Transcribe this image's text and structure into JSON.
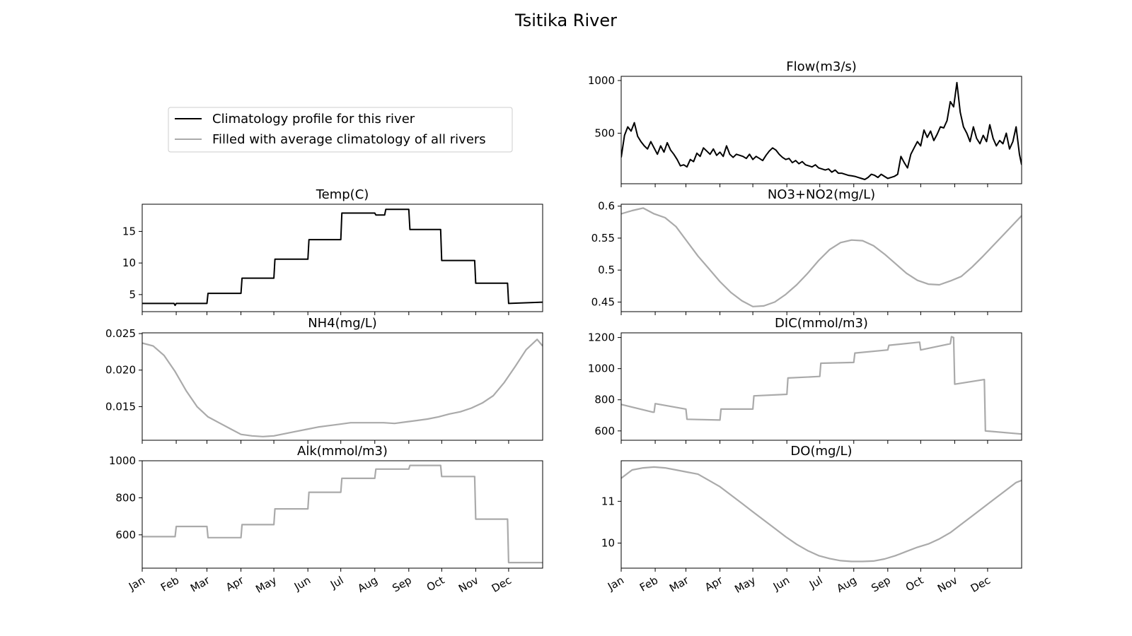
{
  "figure": {
    "title": "Tsitika River"
  },
  "legend": {
    "placement": "upper-left",
    "entries": [
      {
        "label": "Climatology profile for this river",
        "color": "#000000"
      },
      {
        "label": "Filled with average climatology of all rivers",
        "color": "#aaaaaa"
      }
    ]
  },
  "colors": {
    "river": "#000000",
    "average": "#aaaaaa"
  },
  "chart_data": [
    {
      "type": "line",
      "title": "Flow(m3/s)",
      "xlabel": "",
      "ylabel": "",
      "xlim": [
        0,
        365
      ],
      "ylim": [
        20,
        1040
      ],
      "yticks": [
        500,
        1000
      ],
      "show_xticklabels": false,
      "grid": false,
      "series": [
        {
          "style": "river",
          "x": [
            0,
            3,
            6,
            9,
            12,
            15,
            18,
            21,
            24,
            27,
            30,
            33,
            36,
            39,
            42,
            45,
            48,
            51,
            54,
            57,
            60,
            63,
            66,
            69,
            72,
            75,
            78,
            81,
            84,
            87,
            90,
            93,
            96,
            99,
            102,
            105,
            108,
            111,
            114,
            117,
            120,
            123,
            126,
            129,
            132,
            135,
            138,
            141,
            144,
            147,
            150,
            153,
            156,
            159,
            162,
            165,
            168,
            171,
            174,
            177,
            180,
            183,
            186,
            189,
            192,
            195,
            198,
            201,
            204,
            207,
            210,
            213,
            216,
            219,
            222,
            225,
            228,
            231,
            234,
            237,
            240,
            243,
            246,
            249,
            252,
            255,
            258,
            261,
            264,
            267,
            270,
            273,
            276,
            279,
            282,
            285,
            288,
            291,
            294,
            297,
            300,
            303,
            306,
            309,
            312,
            315,
            318,
            321,
            324,
            327,
            330,
            333,
            336,
            339,
            342,
            345,
            348,
            351,
            354,
            357,
            360,
            363,
            365
          ],
          "values": [
            270,
            480,
            560,
            520,
            600,
            470,
            420,
            380,
            350,
            420,
            360,
            300,
            380,
            320,
            410,
            340,
            300,
            250,
            190,
            200,
            180,
            250,
            230,
            310,
            280,
            360,
            330,
            300,
            350,
            290,
            320,
            280,
            380,
            300,
            270,
            300,
            290,
            280,
            260,
            300,
            250,
            280,
            260,
            240,
            290,
            330,
            360,
            340,
            300,
            270,
            250,
            260,
            220,
            240,
            210,
            230,
            200,
            190,
            180,
            200,
            170,
            160,
            150,
            160,
            130,
            150,
            120,
            120,
            110,
            100,
            95,
            90,
            80,
            70,
            60,
            80,
            110,
            100,
            80,
            110,
            90,
            70,
            80,
            90,
            110,
            280,
            220,
            170,
            300,
            360,
            420,
            380,
            530,
            460,
            520,
            430,
            490,
            560,
            550,
            620,
            800,
            750,
            980,
            700,
            560,
            500,
            420,
            560,
            450,
            400,
            480,
            420,
            580,
            450,
            380,
            430,
            400,
            500,
            350,
            420,
            560,
            300,
            200
          ]
        }
      ]
    },
    {
      "type": "line",
      "title": "Temp(C)",
      "xlabel": "",
      "ylabel": "",
      "xlim": [
        0,
        365
      ],
      "ylim": [
        2.3,
        19.3
      ],
      "yticks": [
        5,
        10,
        15
      ],
      "show_xticklabels": false,
      "grid": false,
      "series": [
        {
          "style": "river",
          "x": [
            0,
            29,
            30,
            31,
            59,
            60,
            90,
            91,
            120,
            121,
            151,
            152,
            181,
            182,
            212,
            213,
            221,
            222,
            243,
            244,
            272,
            273,
            303,
            304,
            333,
            334,
            365
          ],
          "values": [
            3.6,
            3.6,
            3.3,
            3.6,
            3.6,
            5.2,
            5.2,
            7.6,
            7.6,
            10.6,
            10.6,
            13.7,
            13.7,
            17.9,
            17.9,
            17.6,
            17.6,
            18.5,
            18.5,
            15.3,
            15.3,
            10.4,
            10.4,
            6.8,
            6.8,
            3.6,
            3.8
          ]
        }
      ]
    },
    {
      "type": "line",
      "title": "NO3+NO2(mg/L)",
      "xlabel": "",
      "ylabel": "",
      "xlim": [
        0,
        365
      ],
      "ylim": [
        0.435,
        0.603
      ],
      "yticks": [
        0.45,
        0.5,
        0.55,
        0.6
      ],
      "show_xticklabels": false,
      "grid": false,
      "series": [
        {
          "style": "average",
          "x": [
            0,
            10,
            20,
            30,
            40,
            50,
            60,
            70,
            80,
            90,
            100,
            110,
            120,
            130,
            140,
            150,
            160,
            170,
            180,
            190,
            200,
            210,
            220,
            230,
            240,
            250,
            260,
            270,
            280,
            290,
            300,
            310,
            320,
            330,
            340,
            350,
            360,
            365
          ],
          "values": [
            0.588,
            0.593,
            0.597,
            0.588,
            0.582,
            0.568,
            0.545,
            0.522,
            0.502,
            0.482,
            0.465,
            0.452,
            0.443,
            0.444,
            0.45,
            0.462,
            0.477,
            0.495,
            0.515,
            0.532,
            0.543,
            0.547,
            0.546,
            0.538,
            0.525,
            0.51,
            0.495,
            0.484,
            0.478,
            0.477,
            0.483,
            0.49,
            0.505,
            0.522,
            0.54,
            0.558,
            0.576,
            0.585
          ]
        }
      ]
    },
    {
      "type": "line",
      "title": "NH4(mg/L)",
      "xlabel": "",
      "ylabel": "",
      "xlim": [
        0,
        365
      ],
      "ylim": [
        0.0104,
        0.0251
      ],
      "yticks": [
        0.015,
        0.02,
        0.025
      ],
      "ytick_labels": [
        "0.015",
        "0.020",
        "0.025"
      ],
      "show_xticklabels": false,
      "grid": false,
      "series": [
        {
          "style": "average",
          "x": [
            0,
            10,
            20,
            30,
            40,
            50,
            60,
            70,
            80,
            90,
            100,
            110,
            120,
            130,
            140,
            150,
            160,
            170,
            180,
            190,
            200,
            210,
            220,
            230,
            240,
            250,
            260,
            270,
            280,
            290,
            300,
            310,
            320,
            330,
            340,
            350,
            360,
            365
          ],
          "values": [
            0.0237,
            0.0233,
            0.022,
            0.0198,
            0.0172,
            0.015,
            0.0136,
            0.0128,
            0.012,
            0.0112,
            0.011,
            0.0109,
            0.011,
            0.0113,
            0.0116,
            0.0119,
            0.0122,
            0.0124,
            0.0126,
            0.0128,
            0.0128,
            0.0128,
            0.0128,
            0.0127,
            0.0129,
            0.0131,
            0.0133,
            0.0136,
            0.014,
            0.0143,
            0.0148,
            0.0155,
            0.0165,
            0.0183,
            0.0205,
            0.0228,
            0.0242,
            0.0233
          ]
        }
      ]
    },
    {
      "type": "line",
      "title": "DIC(mmol/m3)",
      "xlabel": "",
      "ylabel": "",
      "xlim": [
        0,
        365
      ],
      "ylim": [
        540,
        1230
      ],
      "yticks": [
        600,
        800,
        1000,
        1200
      ],
      "show_xticklabels": false,
      "grid": false,
      "series": [
        {
          "style": "average",
          "x": [
            0,
            29,
            30,
            31,
            59,
            60,
            90,
            91,
            120,
            121,
            151,
            152,
            181,
            182,
            212,
            213,
            243,
            244,
            272,
            273,
            300,
            301,
            303,
            304,
            331,
            332,
            365
          ],
          "values": [
            770,
            720,
            720,
            775,
            740,
            675,
            670,
            740,
            740,
            825,
            835,
            940,
            950,
            1035,
            1040,
            1100,
            1120,
            1150,
            1170,
            1120,
            1160,
            1205,
            1200,
            900,
            930,
            600,
            580
          ]
        }
      ]
    },
    {
      "type": "line",
      "title": "Alk(mmol/m3)",
      "xlabel": "",
      "ylabel": "",
      "xlim": [
        0,
        365
      ],
      "ylim": [
        420,
        1000
      ],
      "yticks": [
        600,
        800,
        1000
      ],
      "show_xticklabels": true,
      "grid": false,
      "series": [
        {
          "style": "average",
          "x": [
            0,
            30,
            31,
            59,
            60,
            90,
            91,
            120,
            121,
            151,
            152,
            181,
            182,
            212,
            213,
            243,
            244,
            272,
            273,
            303,
            304,
            333,
            334,
            365
          ],
          "values": [
            590,
            590,
            645,
            645,
            585,
            585,
            655,
            655,
            740,
            740,
            830,
            830,
            905,
            905,
            955,
            955,
            975,
            975,
            915,
            915,
            685,
            685,
            450,
            450
          ]
        }
      ]
    },
    {
      "type": "line",
      "title": "DO(mg/L)",
      "xlabel": "",
      "ylabel": "",
      "xlim": [
        0,
        365
      ],
      "ylim": [
        9.4,
        11.97
      ],
      "yticks": [
        10,
        11
      ],
      "show_xticklabels": true,
      "grid": false,
      "series": [
        {
          "style": "average",
          "x": [
            0,
            10,
            20,
            30,
            40,
            50,
            60,
            70,
            80,
            90,
            100,
            110,
            120,
            130,
            140,
            150,
            160,
            170,
            180,
            190,
            200,
            210,
            220,
            230,
            240,
            250,
            260,
            270,
            280,
            290,
            300,
            310,
            320,
            330,
            340,
            350,
            360,
            365
          ],
          "values": [
            11.55,
            11.75,
            11.8,
            11.82,
            11.8,
            11.75,
            11.7,
            11.65,
            11.5,
            11.35,
            11.15,
            10.95,
            10.75,
            10.55,
            10.35,
            10.15,
            9.97,
            9.82,
            9.7,
            9.63,
            9.58,
            9.56,
            9.56,
            9.57,
            9.62,
            9.7,
            9.8,
            9.9,
            9.98,
            10.1,
            10.25,
            10.45,
            10.65,
            10.85,
            11.05,
            11.25,
            11.45,
            11.5
          ]
        }
      ]
    }
  ],
  "months": [
    "Jan",
    "Feb",
    "Mar",
    "Apr",
    "May",
    "Jun",
    "Jul",
    "Aug",
    "Sep",
    "Oct",
    "Nov",
    "Dec"
  ],
  "month_starts": [
    0,
    31,
    59,
    90,
    120,
    151,
    181,
    212,
    243,
    273,
    304,
    334
  ]
}
